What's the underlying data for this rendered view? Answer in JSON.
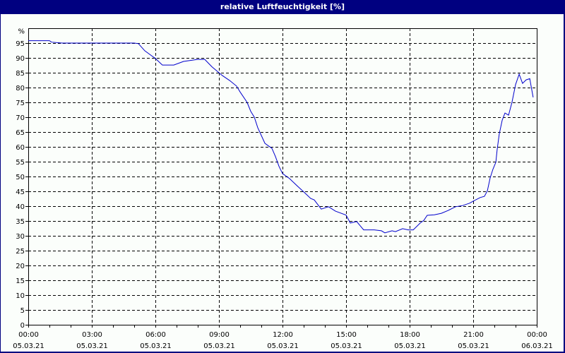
{
  "window": {
    "title": "relative Luftfeuchtigkeit [%]"
  },
  "colors": {
    "titlebar": "#000080",
    "background": "#FBFEFB",
    "line": "#0000CC",
    "grid": "#000000"
  },
  "chart_data": {
    "type": "line",
    "title": "relative Luftfeuchtigkeit [%]",
    "xlabel": "",
    "ylabel": "%",
    "ylim": [
      0,
      100
    ],
    "xlim_hours": [
      0,
      24
    ],
    "grid": true,
    "legend": null,
    "y_ticks": [
      0,
      5,
      10,
      15,
      20,
      25,
      30,
      35,
      40,
      45,
      50,
      55,
      60,
      65,
      70,
      75,
      80,
      85,
      90,
      95
    ],
    "y_unit_label": "%",
    "x_ticks": [
      {
        "time": "00:00",
        "date": "05.03.21",
        "hour": 0
      },
      {
        "time": "03:00",
        "date": "05.03.21",
        "hour": 3
      },
      {
        "time": "06:00",
        "date": "05.03.21",
        "hour": 6
      },
      {
        "time": "09:00",
        "date": "05.03.21",
        "hour": 9
      },
      {
        "time": "12:00",
        "date": "05.03.21",
        "hour": 12
      },
      {
        "time": "15:00",
        "date": "05.03.21",
        "hour": 15
      },
      {
        "time": "18:00",
        "date": "05.03.21",
        "hour": 18
      },
      {
        "time": "21:00",
        "date": "05.03.21",
        "hour": 21
      },
      {
        "time": "00:00",
        "date": "06.03.21",
        "hour": 24
      }
    ],
    "series": [
      {
        "name": "relative Luftfeuchtigkeit",
        "x_hours": [
          0,
          1.0,
          1.1,
          1.6,
          2.0,
          3.0,
          4.0,
          5.0,
          5.2,
          5.5,
          5.83,
          6.0,
          6.33,
          6.87,
          7.33,
          8.0,
          8.13,
          8.33,
          8.67,
          9.0,
          9.17,
          9.5,
          9.83,
          10.0,
          10.33,
          10.5,
          10.67,
          10.83,
          11.17,
          11.5,
          11.67,
          11.83,
          12.0,
          12.33,
          12.67,
          13.0,
          13.33,
          13.5,
          13.67,
          13.83,
          14.17,
          14.5,
          15.0,
          15.2,
          15.5,
          15.83,
          16.33,
          16.67,
          16.83,
          17.17,
          17.33,
          17.67,
          17.93,
          18.17,
          18.5,
          18.67,
          18.83,
          19.17,
          19.5,
          19.83,
          20.17,
          20.5,
          20.83,
          21.0,
          21.33,
          21.53,
          21.67,
          21.8,
          21.93,
          22.07,
          22.13,
          22.23,
          22.37,
          22.5,
          22.67,
          22.83,
          23.0,
          23.17,
          23.33,
          23.5,
          23.67,
          23.83
        ],
        "values": [
          95.8,
          95.8,
          95.3,
          95.0,
          95.0,
          95.0,
          95.0,
          95.0,
          94.8,
          92.4,
          90.7,
          89.8,
          87.6,
          87.6,
          88.8,
          89.5,
          89.5,
          89.5,
          87.0,
          85.0,
          84.0,
          82.4,
          80.5,
          78.5,
          75.0,
          72.0,
          70.0,
          66.5,
          61.2,
          59.5,
          56.7,
          53.5,
          51.0,
          49.3,
          47.0,
          44.8,
          42.6,
          42.1,
          40.5,
          39.0,
          39.8,
          38.3,
          37.0,
          34.3,
          34.8,
          32.0,
          32.0,
          31.7,
          31.0,
          31.7,
          31.4,
          32.4,
          32.0,
          32.0,
          34.3,
          35.2,
          36.9,
          37.1,
          37.6,
          38.6,
          39.8,
          40.2,
          41.0,
          41.7,
          42.9,
          43.3,
          45.2,
          49.5,
          52.4,
          54.8,
          59.0,
          64.3,
          69.0,
          71.4,
          70.7,
          75.0,
          81.0,
          84.5,
          81.4,
          82.6,
          83.0,
          76.7
        ]
      }
    ]
  }
}
